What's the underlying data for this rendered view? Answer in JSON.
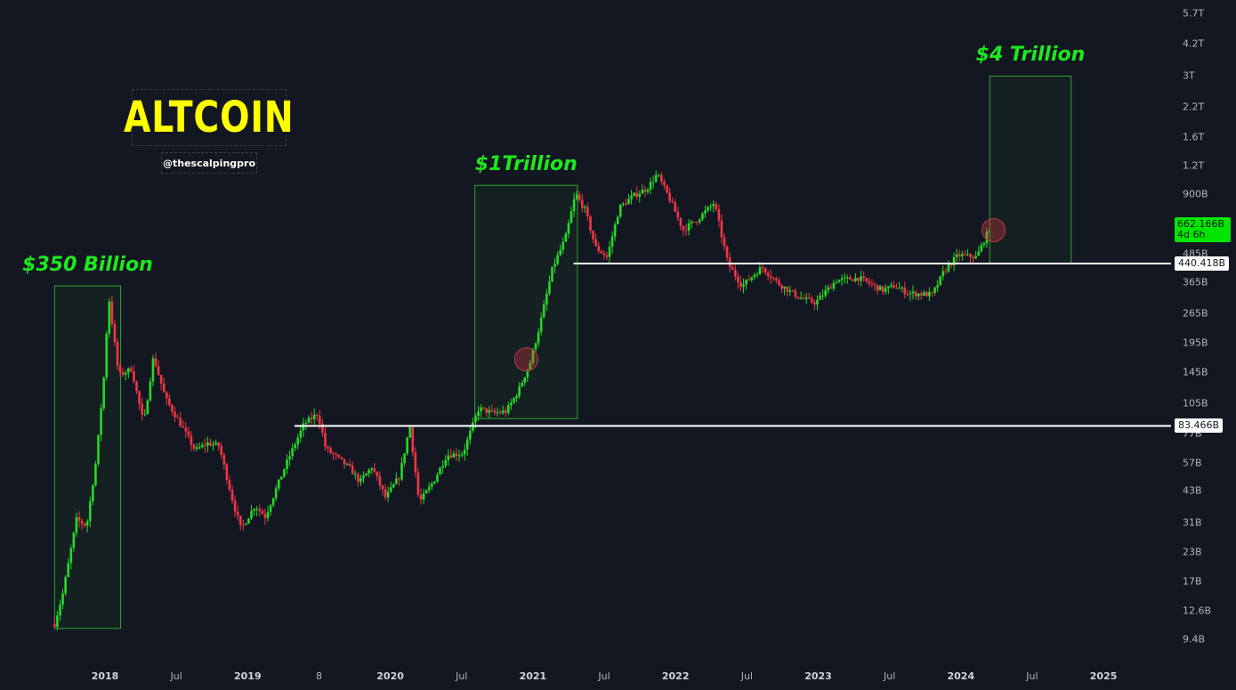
{
  "chart_data": {
    "type": "candlestick",
    "title": "ALTCOIN",
    "subtitle": "@thescalpingpro",
    "scale": "log",
    "y_ticks": [
      {
        "label": "5.7T",
        "value": 5700
      },
      {
        "label": "4.2T",
        "value": 4200
      },
      {
        "label": "3T",
        "value": 3000
      },
      {
        "label": "2.2T",
        "value": 2200
      },
      {
        "label": "1.6T",
        "value": 1600
      },
      {
        "label": "1.2T",
        "value": 1200
      },
      {
        "label": "900B",
        "value": 900
      },
      {
        "label": "485B",
        "value": 485
      },
      {
        "label": "365B",
        "value": 365
      },
      {
        "label": "265B",
        "value": 265
      },
      {
        "label": "195B",
        "value": 195
      },
      {
        "label": "145B",
        "value": 145
      },
      {
        "label": "105B",
        "value": 105
      },
      {
        "label": "77B",
        "value": 77
      },
      {
        "label": "57B",
        "value": 57
      },
      {
        "label": "43B",
        "value": 43
      },
      {
        "label": "31B",
        "value": 31
      },
      {
        "label": "23B",
        "value": 23
      },
      {
        "label": "17B",
        "value": 17
      },
      {
        "label": "12.6B",
        "value": 12.6
      },
      {
        "label": "9.4B",
        "value": 9.4
      }
    ],
    "x_ticks": [
      {
        "label": "2018",
        "t": 2018.0,
        "year": true
      },
      {
        "label": "Jul",
        "t": 2018.5
      },
      {
        "label": "2019",
        "t": 2019.0,
        "year": true
      },
      {
        "label": "8",
        "t": 2019.5
      },
      {
        "label": "2020",
        "t": 2020.0,
        "year": true
      },
      {
        "label": "Jul",
        "t": 2020.5
      },
      {
        "label": "2021",
        "t": 2021.0,
        "year": true
      },
      {
        "label": "Jul",
        "t": 2021.5
      },
      {
        "label": "2022",
        "t": 2022.0,
        "year": true
      },
      {
        "label": "Jul",
        "t": 2022.5
      },
      {
        "label": "2023",
        "t": 2023.0,
        "year": true
      },
      {
        "label": "Jul",
        "t": 2023.5
      },
      {
        "label": "2024",
        "t": 2024.0,
        "year": true
      },
      {
        "label": "Jul",
        "t": 2024.5
      },
      {
        "label": "2025",
        "t": 2025.0,
        "year": true
      }
    ],
    "price_path": [
      [
        "2017-08-25",
        11
      ],
      [
        "2017-09-15",
        15
      ],
      [
        "2017-10-20",
        32
      ],
      [
        "2017-11-15",
        30
      ],
      [
        "2017-12-10",
        60
      ],
      [
        "2017-12-31",
        150
      ],
      [
        "2018-01-10",
        320
      ],
      [
        "2018-02-05",
        140
      ],
      [
        "2018-03-10",
        150
      ],
      [
        "2018-04-10",
        85
      ],
      [
        "2018-05-05",
        170
      ],
      [
        "2018-06-05",
        110
      ],
      [
        "2018-07-05",
        90
      ],
      [
        "2018-08-20",
        65
      ],
      [
        "2018-09-20",
        70
      ],
      [
        "2018-10-20",
        68
      ],
      [
        "2018-11-25",
        38
      ],
      [
        "2018-12-15",
        29
      ],
      [
        "2019-01-20",
        37
      ],
      [
        "2019-02-15",
        33
      ],
      [
        "2019-04-10",
        57
      ],
      [
        "2019-05-25",
        85
      ],
      [
        "2019-06-30",
        95
      ],
      [
        "2019-07-20",
        66
      ],
      [
        "2019-08-20",
        60
      ],
      [
        "2019-09-20",
        54
      ],
      [
        "2019-10-15",
        47
      ],
      [
        "2019-11-15",
        55
      ],
      [
        "2019-12-20",
        40
      ],
      [
        "2020-01-25",
        50
      ],
      [
        "2020-02-20",
        84
      ],
      [
        "2020-03-15",
        38
      ],
      [
        "2020-04-20",
        47
      ],
      [
        "2020-05-25",
        62
      ],
      [
        "2020-07-05",
        63
      ],
      [
        "2020-08-15",
        100
      ],
      [
        "2020-09-20",
        95
      ],
      [
        "2020-10-25",
        97
      ],
      [
        "2020-11-25",
        120
      ],
      [
        "2020-12-25",
        160
      ],
      [
        "2021-01-20",
        240
      ],
      [
        "2021-02-20",
        420
      ],
      [
        "2021-03-25",
        570
      ],
      [
        "2021-04-20",
        900
      ],
      [
        "2021-05-15",
        760
      ],
      [
        "2021-06-10",
        520
      ],
      [
        "2021-07-10",
        470
      ],
      [
        "2021-08-10",
        780
      ],
      [
        "2021-09-15",
        880
      ],
      [
        "2021-10-20",
        950
      ],
      [
        "2021-11-15",
        1100
      ],
      [
        "2021-12-20",
        830
      ],
      [
        "2022-01-20",
        620
      ],
      [
        "2022-03-01",
        700
      ],
      [
        "2022-04-10",
        820
      ],
      [
        "2022-05-15",
        440
      ],
      [
        "2022-06-20",
        350
      ],
      [
        "2022-08-10",
        425
      ],
      [
        "2022-09-20",
        360
      ],
      [
        "2022-11-15",
        310
      ],
      [
        "2022-12-25",
        295
      ],
      [
        "2023-02-15",
        370
      ],
      [
        "2023-04-15",
        380
      ],
      [
        "2023-06-15",
        335
      ],
      [
        "2023-07-15",
        350
      ],
      [
        "2023-08-20",
        325
      ],
      [
        "2023-10-20",
        320
      ],
      [
        "2023-11-20",
        410
      ],
      [
        "2023-12-25",
        480
      ],
      [
        "2024-02-10",
        470
      ],
      [
        "2024-03-20",
        662.166
      ]
    ],
    "levels": [
      {
        "label": "83.466B",
        "value": 83.466,
        "from": "2019-05-01"
      },
      {
        "label": "440.418B",
        "value": 440.418,
        "from": "2021-04-15"
      }
    ],
    "annotations": [
      {
        "label": "$350 Billion",
        "x0": "2017-08-25",
        "x1": "2018-02-10",
        "y0": 10.5,
        "y1": 350
      },
      {
        "label": "$1Trillion",
        "x0": "2020-08-05",
        "x1": "2021-04-25",
        "y0": 90,
        "y1": 980
      },
      {
        "label": "$4 Trillion",
        "x0": "2024-03-15",
        "x1": "2024-10-10",
        "y0": 440,
        "y1": 3000
      }
    ],
    "circles": [
      {
        "t": "2020-12-15",
        "value": 165
      },
      {
        "t": "2024-03-25",
        "value": 620
      }
    ],
    "current": {
      "value_label": "662.166B",
      "value": 662.166,
      "countdown": "4d 6h"
    },
    "colors": {
      "up": "#26d926",
      "down": "#f23645",
      "level": "#ffffff",
      "zone": "#2fa52f",
      "label": "#1ee81e",
      "logo": "#ffff00"
    }
  }
}
